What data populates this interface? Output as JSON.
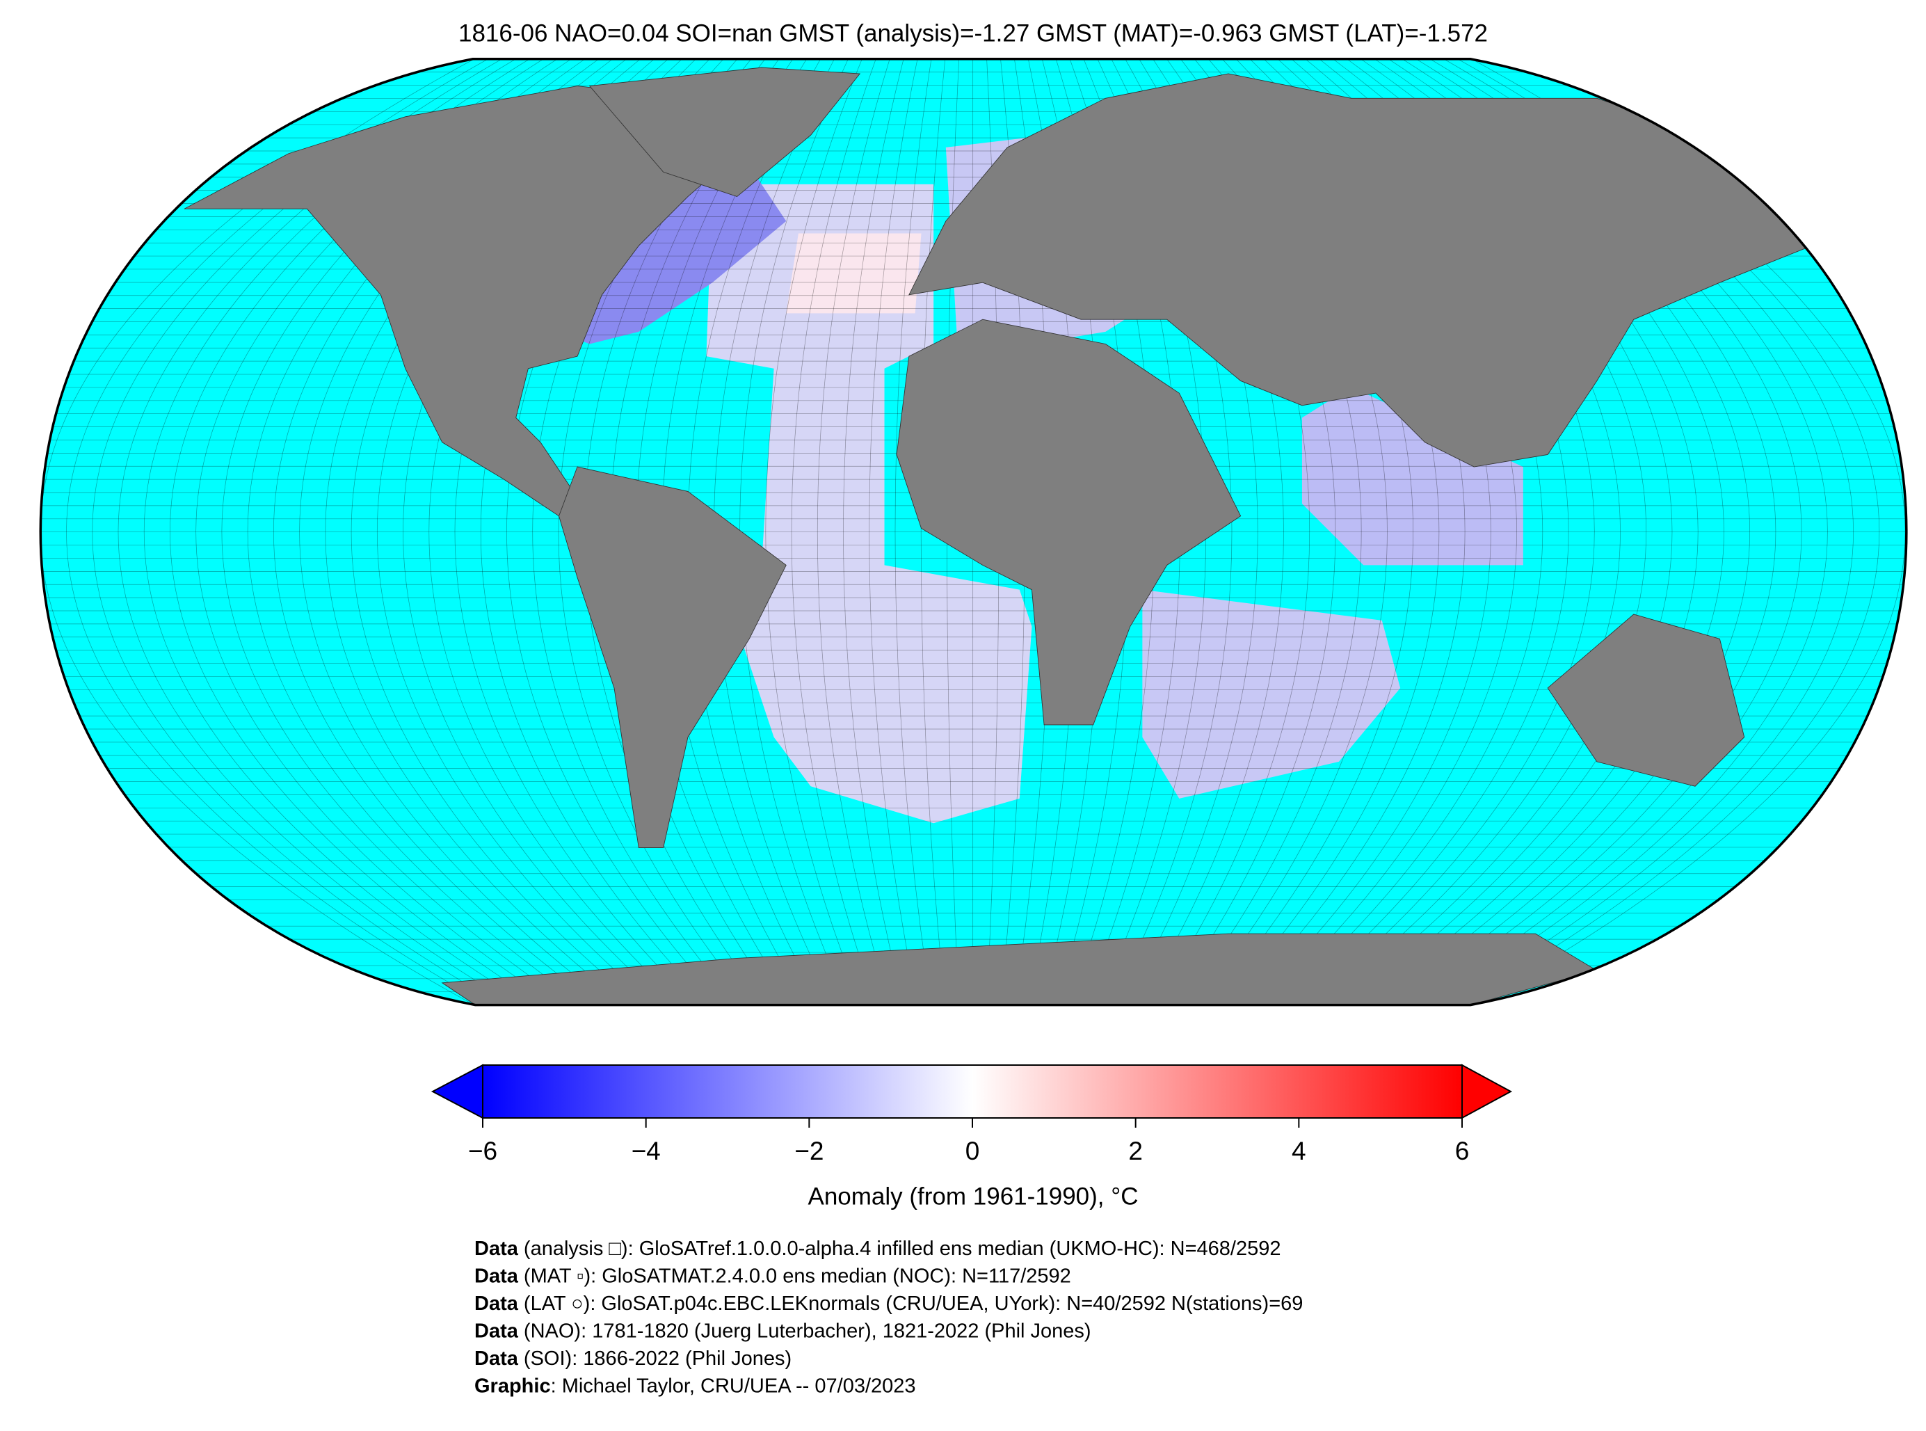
{
  "title": "1816-06 NAO=0.04 SOI=nan GMST (analysis)=-1.27 GMST (MAT)=-0.963 GMST (LAT)=-1.572",
  "colorbar": {
    "label": "Anomaly (from 1961-1990), °C",
    "lim": [
      -6,
      6
    ],
    "ticks": [
      {
        "value": -6,
        "label": "−6"
      },
      {
        "value": -4,
        "label": "−4"
      },
      {
        "value": -2,
        "label": "−2"
      },
      0,
      2,
      4,
      6
    ]
  },
  "footer": [
    {
      "bold": "Data",
      "text": " (analysis □): GloSATref.1.0.0.0-alpha.4 infilled ens median (UKMO-HC): N=468/2592"
    },
    {
      "bold": "Data",
      "text": " (MAT ▫): GloSATMAT.2.4.0.0 ens median (NOC): N=117/2592"
    },
    {
      "bold": "Data",
      "text": " (LAT ○): GloSAT.p04c.EBC.LEKnormals (CRU/UEA, UYork): N=40/2592 N(stations)=69"
    },
    {
      "bold": "Data",
      "text": " (NAO): 1781-1820 (Juerg Luterbacher), 1821-2022 (Phil Jones)"
    },
    {
      "bold": "Data",
      "text": " (SOI): 1866-2022 (Phil Jones)"
    },
    {
      "bold": "Graphic",
      "text": ": Michael Taylor, CRU/UEA -- 07/03/2023"
    }
  ]
}
